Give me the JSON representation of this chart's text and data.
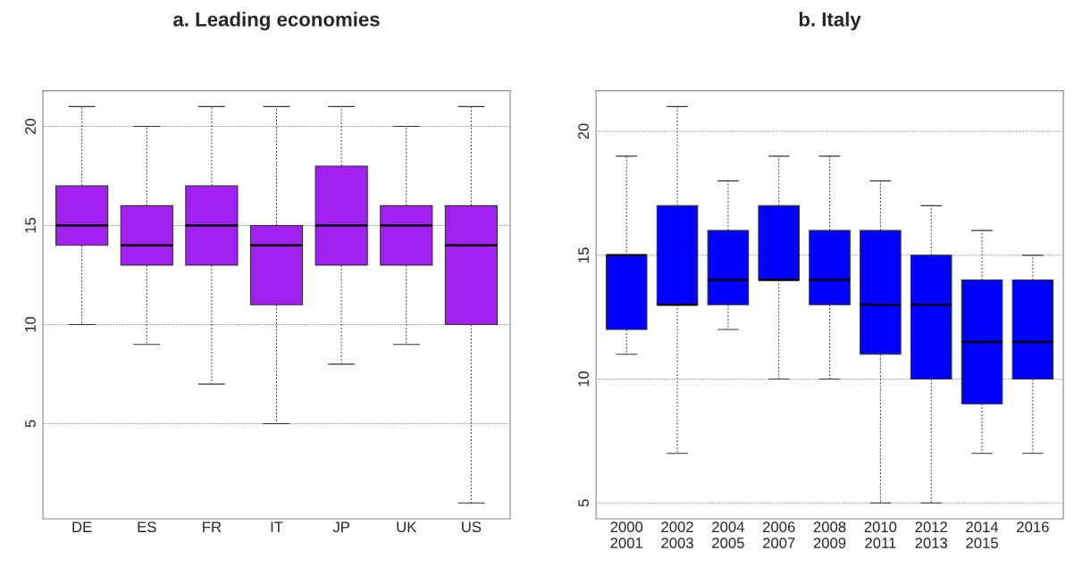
{
  "chart_data": [
    {
      "type": "box",
      "title": "a. Leading economies",
      "categories": [
        "DE",
        "ES",
        "FR",
        "IT",
        "JP",
        "UK",
        "US"
      ],
      "ylim": [
        0.2,
        21.8
      ],
      "yticks": [
        5,
        10,
        15,
        20
      ],
      "grid": "y",
      "series": [
        {
          "color": "#a020f0",
          "boxes": [
            {
              "low": 10,
              "q1": 14,
              "median": 15,
              "q3": 17,
              "high": 21
            },
            {
              "low": 9,
              "q1": 13,
              "median": 14,
              "q3": 16,
              "high": 20
            },
            {
              "low": 7,
              "q1": 13,
              "median": 15,
              "q3": 17,
              "high": 21
            },
            {
              "low": 5,
              "q1": 11,
              "median": 14,
              "q3": 15,
              "high": 21
            },
            {
              "low": 8,
              "q1": 13,
              "median": 15,
              "q3": 18,
              "high": 21
            },
            {
              "low": 9,
              "q1": 13,
              "median": 15,
              "q3": 16,
              "high": 20
            },
            {
              "low": 1,
              "q1": 10,
              "median": 14,
              "q3": 16,
              "high": 21
            }
          ]
        }
      ]
    },
    {
      "type": "box",
      "title": "b. Italy",
      "categories": [
        "2000\n2001",
        "2002\n2003",
        "2004\n2005",
        "2006\n2007",
        "2008\n2009",
        "2010\n2011",
        "2012\n2013",
        "2014\n2015",
        "2016"
      ],
      "ylim": [
        4.36,
        21.64
      ],
      "yticks": [
        5,
        10,
        15,
        20
      ],
      "grid": "y",
      "series": [
        {
          "color": "#0000ff",
          "boxes": [
            {
              "low": 11,
              "q1": 12,
              "median": 15,
              "q3": 15,
              "high": 19
            },
            {
              "low": 7,
              "q1": 13,
              "median": 13,
              "q3": 17,
              "high": 21
            },
            {
              "low": 12,
              "q1": 13,
              "median": 14,
              "q3": 16,
              "high": 18
            },
            {
              "low": 10,
              "q1": 14,
              "median": 14,
              "q3": 17,
              "high": 19
            },
            {
              "low": 10,
              "q1": 13,
              "median": 14,
              "q3": 16,
              "high": 19
            },
            {
              "low": 5,
              "q1": 11,
              "median": 13,
              "q3": 16,
              "high": 18
            },
            {
              "low": 5,
              "q1": 10,
              "median": 13,
              "q3": 15,
              "high": 17
            },
            {
              "low": 7,
              "q1": 9,
              "median": 11.5,
              "q3": 14,
              "high": 16
            },
            {
              "low": 7,
              "q1": 10,
              "median": 11.5,
              "q3": 14,
              "high": 15
            }
          ]
        }
      ]
    }
  ]
}
